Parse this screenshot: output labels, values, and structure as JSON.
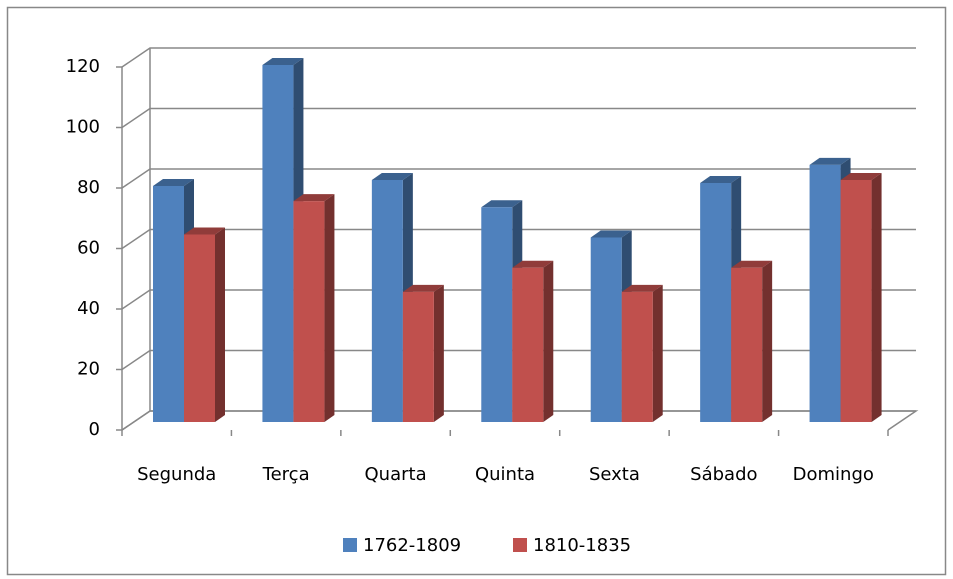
{
  "chart_data": {
    "type": "bar3d",
    "categories": [
      "Segunda",
      "Terça",
      "Quarta",
      "Quinta",
      "Sexta",
      "Sábado",
      "Domingo"
    ],
    "series": [
      {
        "name": "1762-1809",
        "color": "#4f81bd",
        "values": [
          78,
          118,
          80,
          71,
          61,
          79,
          85
        ]
      },
      {
        "name": "1810-1835",
        "color": "#c0504d",
        "values": [
          62,
          73,
          43,
          51,
          43,
          51,
          80
        ]
      }
    ],
    "ylim": [
      0,
      120
    ],
    "yticks": [
      0,
      20,
      40,
      60,
      80,
      100,
      120
    ],
    "grid": true,
    "legend": "bottom"
  }
}
